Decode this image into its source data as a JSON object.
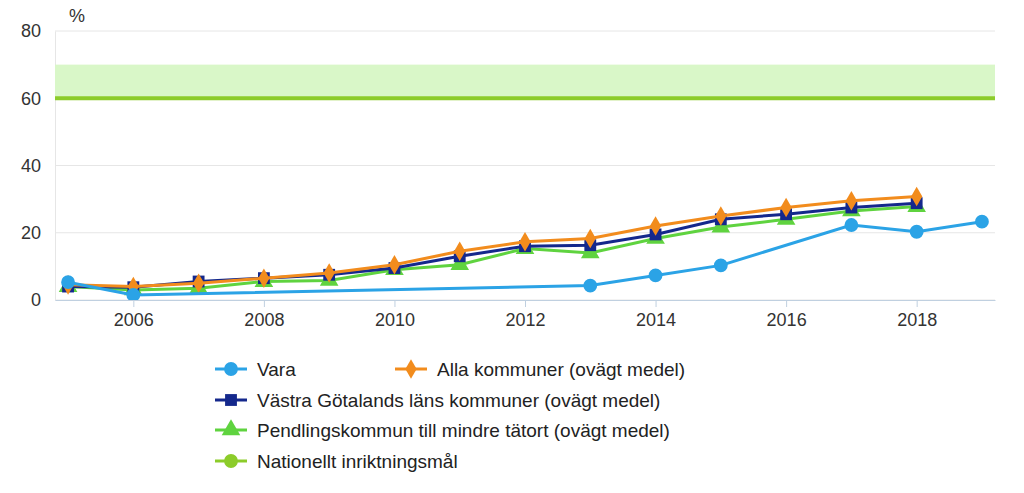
{
  "chart_data": {
    "type": "line",
    "y_label": "%",
    "x": [
      2005,
      2006,
      2007,
      2008,
      2009,
      2010,
      2011,
      2012,
      2013,
      2014,
      2015,
      2016,
      2017,
      2018
    ],
    "xlim": [
      2004.8,
      2019.2
    ],
    "xticks": [
      2006,
      2008,
      2010,
      2012,
      2014,
      2016,
      2018
    ],
    "ylim": [
      0,
      80
    ],
    "yticks": [
      0,
      20,
      40,
      60,
      80
    ],
    "grid": true,
    "legend": "bottom",
    "series": [
      {
        "name": "Vara",
        "color": "#2ba3e6",
        "marker": "circle",
        "x": [
          2005,
          2006,
          2013,
          2014,
          2015,
          2017,
          2018,
          2019
        ],
        "values": [
          5.3,
          1.5,
          4.3,
          7.3,
          10.3,
          22.3,
          20.3,
          23.3
        ]
      },
      {
        "name": "Alla kommuner (ovägt medel)",
        "color": "#f28c1d",
        "marker": "diamond",
        "values": [
          4.5,
          4,
          5,
          6.5,
          8,
          10.5,
          14.5,
          17.3,
          18.3,
          22,
          25,
          27.5,
          29.5,
          30.8
        ]
      },
      {
        "name": "Västra Götalands läns kommuner (ovägt medel)",
        "color": "#14288c",
        "marker": "square",
        "values": [
          4,
          3.8,
          5.5,
          6.5,
          7.5,
          9.5,
          13,
          16,
          16.3,
          19.5,
          24,
          25.5,
          27.5,
          28.8
        ]
      },
      {
        "name": "Pendlingskommun till mindre tätort (ovägt medel)",
        "color": "#5fd33f",
        "marker": "triangle",
        "values": [
          4,
          3,
          3.5,
          5.5,
          5.8,
          9,
          10.5,
          15.3,
          14,
          18.3,
          21.7,
          24,
          26.5,
          27.8
        ]
      },
      {
        "name": "Nationellt inriktningsmål",
        "color": "#8ccc2a",
        "marker": "circle",
        "x": [
          2004.8,
          2019.2
        ],
        "values": [
          60,
          60
        ],
        "band": [
          60,
          70
        ]
      }
    ]
  }
}
